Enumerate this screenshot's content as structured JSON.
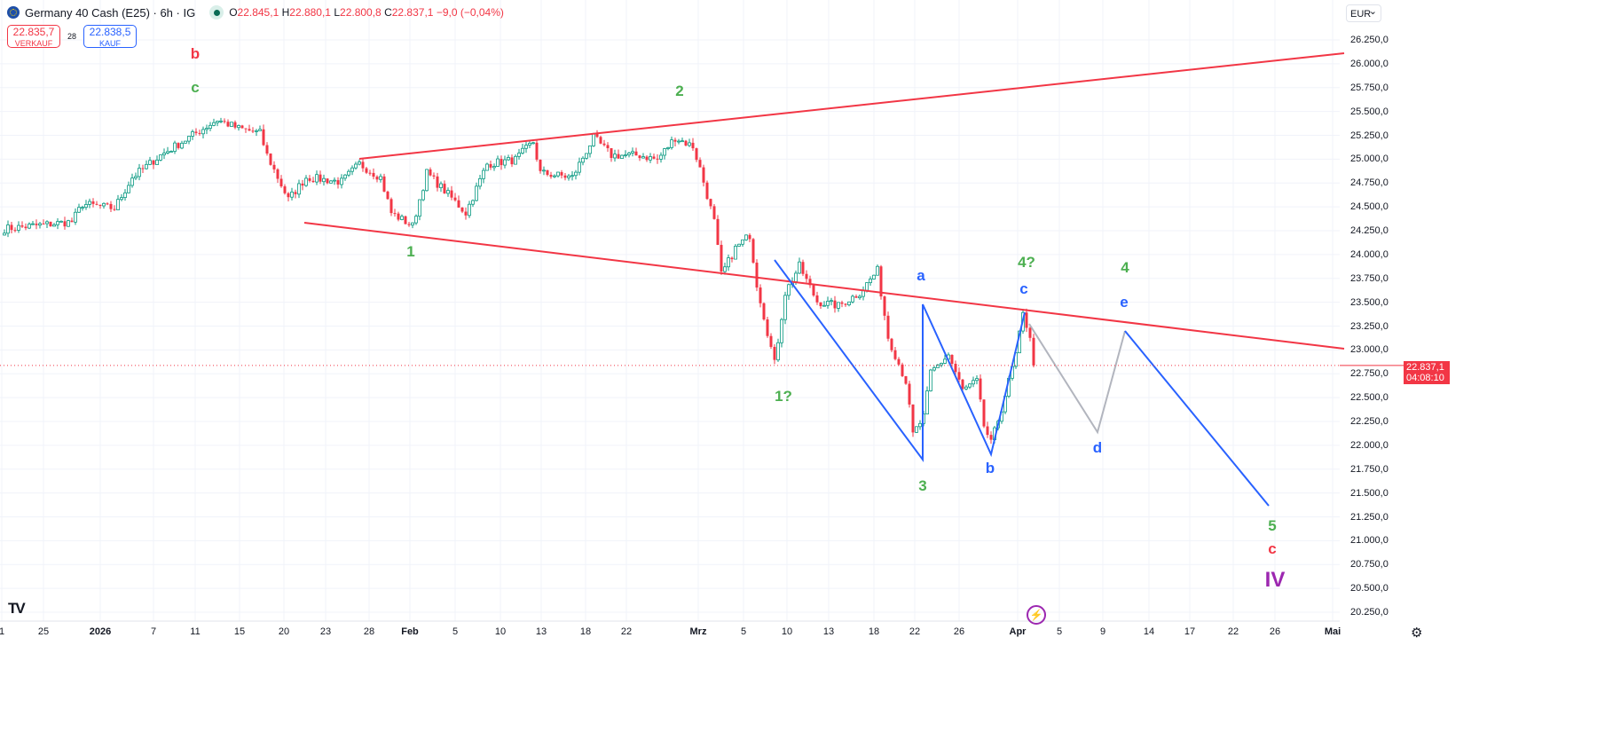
{
  "header": {
    "symbol": "Germany 40 Cash (E25) · 6h · IG",
    "ohlc": {
      "o_label": "O",
      "o": "22.845,1",
      "h_label": "H",
      "h": "22.880,1",
      "l_label": "L",
      "l": "22.800,8",
      "c_label": "C",
      "c": "22.837,1",
      "change": "−9,0 (−0,04%)"
    }
  },
  "trade": {
    "sell_price": "22.835,7",
    "sell_label": "VERKAUF",
    "spread": "28",
    "buy_price": "22.838,5",
    "buy_label": "KAUF"
  },
  "currency": "EUR",
  "last_price": {
    "price": "22.837,1",
    "countdown": "04:08:10",
    "value": 22837.1
  },
  "colors": {
    "up": "#089981",
    "down": "#f23645",
    "trend": "#f23645",
    "wave": "#2962ff",
    "projection": "#b2b5be"
  },
  "wave_labels": {
    "b_top": "b",
    "c_top": "c",
    "w2": "2",
    "w1": "1",
    "w1q": "1?",
    "w3": "3",
    "a": "a",
    "b_low": "b",
    "w4q": "4?",
    "c_mid": "c",
    "w4": "4",
    "e": "e",
    "d": "d",
    "w5": "5",
    "c_end": "c",
    "iv": "IV"
  },
  "icons": {
    "logo": "TV",
    "bolt": "⚡",
    "settings": "⚙"
  },
  "chart_data": {
    "type": "candlestick",
    "title": "Germany 40 Cash (E25) · 6h · IG",
    "ylabel": "EUR",
    "ylim": [
      20250,
      26250
    ],
    "grid": true,
    "y_ticks": [
      "26.250,0",
      "26.000,0",
      "25.750,0",
      "25.500,0",
      "25.250,0",
      "25.000,0",
      "24.750,0",
      "24.500,0",
      "24.250,0",
      "24.000,0",
      "23.750,0",
      "23.500,0",
      "23.250,0",
      "23.000,0",
      "22.750,0",
      "22.500,0",
      "22.250,0",
      "22.000,0",
      "21.750,0",
      "21.500,0",
      "21.250,0",
      "21.000,0",
      "20.750,0",
      "20.500,0",
      "20.250,0"
    ],
    "x_ticks": [
      "1",
      "25",
      "2026",
      "7",
      "11",
      "15",
      "20",
      "23",
      "28",
      "Feb",
      "5",
      "10",
      "13",
      "18",
      "22",
      "Mrz",
      "5",
      "10",
      "13",
      "18",
      "22",
      "26",
      "Apr",
      "5",
      "9",
      "14",
      "17",
      "22",
      "26",
      "Mai"
    ],
    "close_waypoints_bar_price": [
      [
        0,
        24269
      ],
      [
        19,
        24343
      ],
      [
        22,
        24529
      ],
      [
        31,
        24483
      ],
      [
        36,
        24808
      ],
      [
        44,
        25040
      ],
      [
        52,
        25226
      ],
      [
        60,
        25413
      ],
      [
        66,
        25320
      ],
      [
        72,
        25273
      ],
      [
        74,
        25040
      ],
      [
        80,
        24575
      ],
      [
        85,
        24808
      ],
      [
        95,
        24762
      ],
      [
        100,
        24948
      ],
      [
        106,
        24808
      ],
      [
        109,
        24436
      ],
      [
        115,
        24297
      ],
      [
        119,
        24855
      ],
      [
        124,
        24669
      ],
      [
        130,
        24436
      ],
      [
        136,
        24948
      ],
      [
        144,
        24994
      ],
      [
        149,
        25180
      ],
      [
        151,
        24855
      ],
      [
        160,
        24808
      ],
      [
        166,
        25226
      ],
      [
        171,
        25040
      ],
      [
        179,
        25040
      ],
      [
        184,
        24994
      ],
      [
        189,
        25226
      ],
      [
        194,
        25133
      ],
      [
        196,
        24900
      ],
      [
        200,
        24343
      ],
      [
        202,
        23785
      ],
      [
        206,
        24064
      ],
      [
        210,
        24204
      ],
      [
        212,
        23692
      ],
      [
        217,
        22855
      ],
      [
        220,
        23599
      ],
      [
        224,
        23878
      ],
      [
        229,
        23506
      ],
      [
        235,
        23460
      ],
      [
        241,
        23599
      ],
      [
        246,
        23831
      ],
      [
        249,
        23134
      ],
      [
        254,
        22669
      ],
      [
        256,
        22110
      ],
      [
        259,
        22296
      ],
      [
        261,
        22762
      ],
      [
        266,
        22948
      ],
      [
        270,
        22576
      ],
      [
        274,
        22669
      ],
      [
        276,
        22204
      ],
      [
        278,
        22017
      ],
      [
        281,
        22389
      ],
      [
        285,
        22948
      ],
      [
        287,
        23366
      ],
      [
        289,
        23150
      ],
      [
        290,
        22837
      ]
    ]
  }
}
